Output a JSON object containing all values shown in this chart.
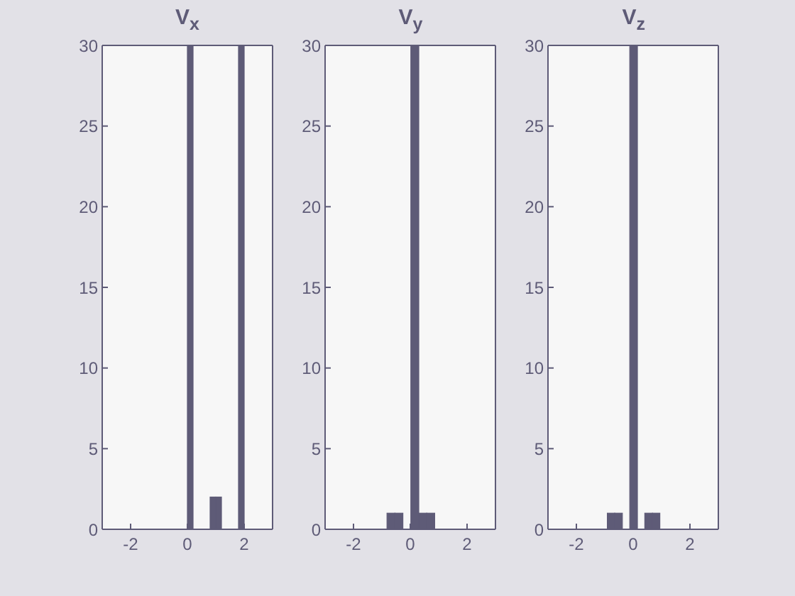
{
  "chart_data": [
    {
      "type": "histogram",
      "title": "V$_{x}$",
      "bins": [
        0,
        0.2,
        0.4,
        0.6,
        0.8,
        1,
        1.2,
        1.4,
        1.6,
        1.8,
        2
      ],
      "values": [
        30,
        0,
        0,
        0,
        2,
        2,
        0,
        0,
        0,
        30
      ],
      "color": "#5e5b77",
      "xlim": [
        -3,
        3
      ],
      "xticks": [
        -2,
        0,
        2
      ],
      "ylim": [
        0,
        30
      ],
      "yticks": [
        0,
        5,
        10,
        15,
        20,
        25,
        30
      ]
    },
    {
      "type": "histogram",
      "title": "V$_{y}$",
      "bins": [
        -0.82,
        -0.54,
        -0.26,
        0.02,
        0.3,
        0.58,
        0.86
      ],
      "values": [
        1,
        1,
        0,
        30,
        1,
        1
      ],
      "color": "#5e5b77",
      "xlim": [
        -3,
        3
      ],
      "xticks": [
        -2,
        0,
        2
      ],
      "ylim": [
        0,
        30
      ],
      "yticks": [
        0,
        5,
        10,
        15,
        20,
        25,
        30
      ]
    },
    {
      "type": "histogram",
      "title": "V$_{z}$",
      "bins": [
        -0.91,
        -0.65,
        -0.38,
        -0.12,
        0.15,
        0.41,
        0.68,
        0.94
      ],
      "values": [
        1,
        1,
        0,
        30,
        0,
        1,
        1
      ],
      "color": "#5e5b77",
      "xlim": [
        -3,
        3
      ],
      "xticks": [
        -2,
        0,
        2
      ],
      "ylim": [
        0,
        30
      ],
      "yticks": [
        0,
        5,
        10,
        15,
        20,
        25,
        30
      ]
    }
  ]
}
